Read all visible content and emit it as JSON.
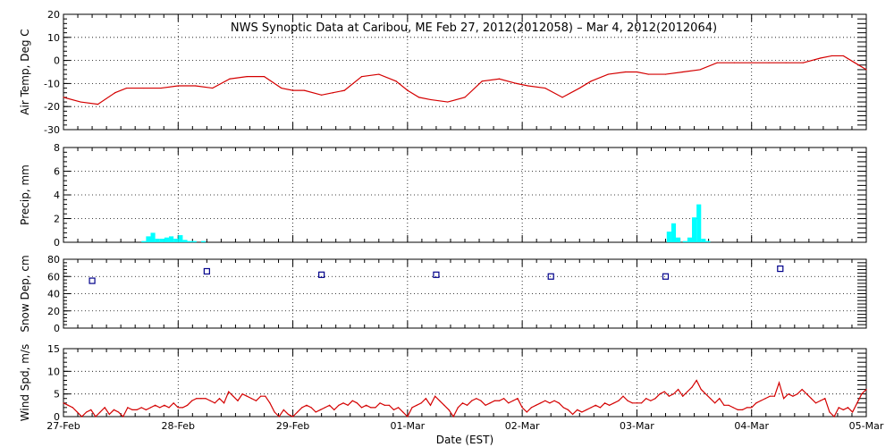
{
  "title": "NWS Synoptic Data at Caribou, ME   Feb 27, 2012(2012058) – Mar  4, 2012(2012064)",
  "xlabel": "Date (EST)",
  "x_tick_labels": [
    "27-Feb",
    "28-Feb",
    "29-Feb",
    "01-Mar",
    "02-Mar",
    "03-Mar",
    "04-Mar",
    "05-Mar"
  ],
  "colors": {
    "temp": "#d40000",
    "precip": "#00ffff",
    "snow": "#00008b",
    "wind": "#d40000",
    "grid": "#000000"
  },
  "chart_data": [
    {
      "type": "line",
      "name": "temp",
      "ylabel": "Air Temp, Deg C",
      "ylim": [
        -30,
        20
      ],
      "yticks": [
        -30,
        -20,
        -10,
        0,
        10,
        20
      ],
      "x_unit": "days since 27-Feb 00:00 EST",
      "xlim": [
        0,
        7
      ],
      "grid": true,
      "x": [
        0,
        0.15,
        0.3,
        0.45,
        0.55,
        0.7,
        0.85,
        1.0,
        1.15,
        1.3,
        1.45,
        1.6,
        1.75,
        1.9,
        2.0,
        2.1,
        2.25,
        2.35,
        2.45,
        2.6,
        2.75,
        2.9,
        3.0,
        3.1,
        3.2,
        3.35,
        3.5,
        3.65,
        3.8,
        3.95,
        4.05,
        4.2,
        4.35,
        4.5,
        4.6,
        4.75,
        4.9,
        5.0,
        5.1,
        5.25,
        5.4,
        5.55,
        5.7,
        5.85,
        6.0,
        6.15,
        6.3,
        6.45,
        6.6,
        6.7,
        6.8,
        6.9,
        7.0
      ],
      "y": [
        -16,
        -18,
        -19,
        -14,
        -12,
        -12,
        -12,
        -11,
        -11,
        -12,
        -8,
        -7,
        -7,
        -12,
        -13,
        -13,
        -15,
        -14,
        -13,
        -7,
        -6,
        -9,
        -13,
        -16,
        -17,
        -18,
        -16,
        -9,
        -8,
        -10,
        -11,
        -12,
        -16,
        -12,
        -9,
        -6,
        -5,
        -5,
        -6,
        -6,
        -5,
        -4,
        -1,
        -1,
        -1,
        -1,
        -1,
        -1,
        1,
        2,
        2,
        -1,
        -4
      ]
    },
    {
      "type": "bar",
      "name": "precip",
      "ylabel": "Precip, mm",
      "ylim": [
        0,
        8
      ],
      "yticks": [
        0,
        2,
        4,
        6,
        8
      ],
      "xlim": [
        0,
        7
      ],
      "grid": true,
      "x": [
        0.7,
        0.74,
        0.78,
        0.82,
        0.86,
        0.9,
        0.94,
        0.98,
        1.02,
        1.06,
        1.1,
        1.14,
        1.22,
        5.28,
        5.32,
        5.36,
        5.42,
        5.46,
        5.5,
        5.54,
        5.58,
        5.62
      ],
      "y": [
        0.1,
        0.5,
        0.8,
        0.3,
        0.3,
        0.4,
        0.5,
        0.3,
        0.6,
        0.2,
        0.1,
        0.1,
        0.1,
        0.9,
        1.6,
        0.4,
        0.1,
        0.4,
        2.1,
        3.2,
        0.3,
        0.1
      ],
      "bar_width": 0.04
    },
    {
      "type": "scatter",
      "name": "snow",
      "ylabel": "Snow Dep, cm",
      "ylim": [
        0,
        80
      ],
      "yticks": [
        0,
        20,
        40,
        60,
        80
      ],
      "xlim": [
        0,
        7
      ],
      "grid": true,
      "x": [
        0.25,
        1.25,
        2.25,
        3.25,
        4.25,
        5.25,
        6.25
      ],
      "y": [
        55,
        66,
        62,
        62,
        60,
        60,
        69
      ]
    },
    {
      "type": "line",
      "name": "wind",
      "ylabel": "Wind Spd, m/s",
      "ylim": [
        0,
        15
      ],
      "yticks": [
        0,
        5,
        10,
        15
      ],
      "xlim": [
        0,
        7
      ],
      "grid": true,
      "x": [
        0,
        0.04,
        0.08,
        0.12,
        0.16,
        0.2,
        0.24,
        0.28,
        0.32,
        0.36,
        0.4,
        0.44,
        0.48,
        0.52,
        0.56,
        0.6,
        0.64,
        0.68,
        0.72,
        0.76,
        0.8,
        0.84,
        0.88,
        0.92,
        0.96,
        1.0,
        1.04,
        1.08,
        1.12,
        1.16,
        1.2,
        1.24,
        1.28,
        1.32,
        1.36,
        1.4,
        1.44,
        1.48,
        1.52,
        1.56,
        1.6,
        1.64,
        1.68,
        1.72,
        1.76,
        1.8,
        1.84,
        1.88,
        1.92,
        1.96,
        2.0,
        2.04,
        2.08,
        2.12,
        2.16,
        2.2,
        2.24,
        2.28,
        2.32,
        2.36,
        2.4,
        2.44,
        2.48,
        2.52,
        2.56,
        2.6,
        2.64,
        2.68,
        2.72,
        2.76,
        2.8,
        2.84,
        2.88,
        2.92,
        2.96,
        3.0,
        3.04,
        3.08,
        3.12,
        3.16,
        3.2,
        3.24,
        3.28,
        3.32,
        3.36,
        3.4,
        3.44,
        3.48,
        3.52,
        3.56,
        3.6,
        3.64,
        3.68,
        3.72,
        3.76,
        3.8,
        3.84,
        3.88,
        3.92,
        3.96,
        4.0,
        4.04,
        4.08,
        4.12,
        4.16,
        4.2,
        4.24,
        4.28,
        4.32,
        4.36,
        4.4,
        4.44,
        4.48,
        4.52,
        4.56,
        4.6,
        4.64,
        4.68,
        4.72,
        4.76,
        4.8,
        4.84,
        4.88,
        4.92,
        4.96,
        5.0,
        5.04,
        5.08,
        5.12,
        5.16,
        5.2,
        5.24,
        5.28,
        5.32,
        5.36,
        5.4,
        5.44,
        5.48,
        5.52,
        5.56,
        5.6,
        5.64,
        5.68,
        5.72,
        5.76,
        5.8,
        5.84,
        5.88,
        5.92,
        5.96,
        6.0,
        6.04,
        6.08,
        6.12,
        6.16,
        6.2,
        6.24,
        6.28,
        6.32,
        6.36,
        6.4,
        6.44,
        6.48,
        6.52,
        6.56,
        6.6,
        6.64,
        6.68,
        6.72,
        6.76,
        6.8,
        6.84,
        6.88,
        6.92,
        6.96,
        7.0
      ],
      "y": [
        3,
        2.5,
        2,
        1,
        0,
        1,
        1.5,
        0,
        1,
        2,
        0.5,
        1.5,
        1,
        0,
        2,
        1.5,
        1.5,
        2,
        1.5,
        2,
        2.5,
        2,
        2.5,
        2,
        3,
        2,
        2,
        2.5,
        3.5,
        4,
        4,
        4,
        3.5,
        3,
        4,
        3,
        5.5,
        4.5,
        3.5,
        5,
        4.5,
        4,
        3.5,
        4.5,
        4.5,
        3,
        1,
        0,
        1.5,
        0.5,
        0,
        1,
        2,
        2.5,
        2,
        1,
        1.5,
        2,
        2.5,
        1.5,
        2.5,
        3,
        2.5,
        3.5,
        3,
        2,
        2.5,
        2,
        2,
        3,
        2.5,
        2.5,
        1.5,
        2,
        1,
        0,
        2,
        2.5,
        3,
        4,
        2.5,
        4.5,
        3.5,
        2.5,
        1.5,
        0,
        2,
        3,
        2.5,
        3.5,
        4,
        3.5,
        2.5,
        3,
        3.5,
        3.5,
        4,
        3,
        3.5,
        4,
        2,
        1,
        2,
        2.5,
        3,
        3.5,
        3,
        3.5,
        3,
        2,
        1.5,
        0.5,
        1.5,
        1,
        1.5,
        2,
        2.5,
        2,
        3,
        2.5,
        3,
        3.5,
        4.5,
        3.5,
        3,
        3,
        3,
        4,
        3.5,
        4,
        5,
        5.5,
        4.5,
        5,
        6,
        4.5,
        5.5,
        6.5,
        8,
        6,
        5,
        4,
        3,
        4,
        2.5,
        2.5,
        2,
        1.5,
        1.5,
        2,
        2,
        3,
        3.5,
        4,
        4.5,
        4.5,
        7.5,
        4,
        5,
        4.5,
        5,
        6,
        5,
        4,
        3,
        3.5,
        4,
        1,
        0,
        2,
        1.5,
        2,
        1,
        3,
        5,
        6
      ]
    }
  ]
}
